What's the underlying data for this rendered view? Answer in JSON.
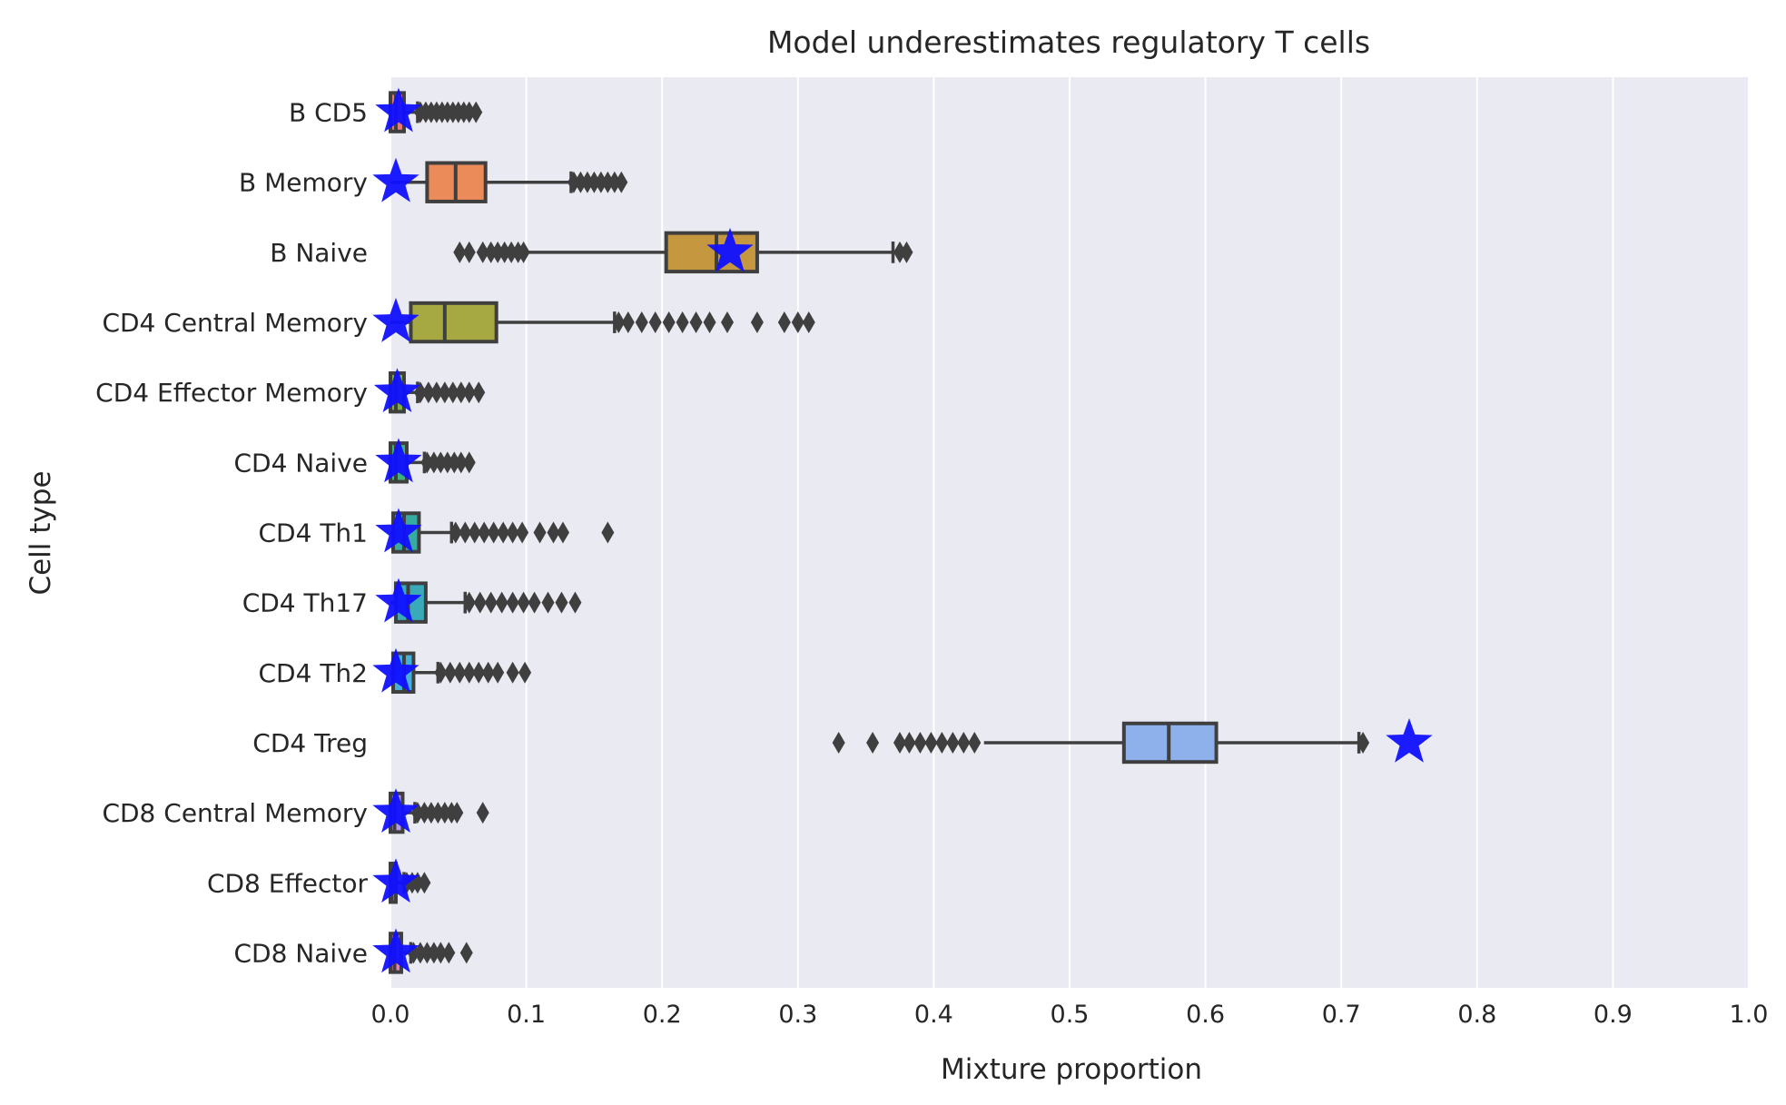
{
  "chart_data": {
    "type": "box",
    "title": "Model underestimates regulatory T cells",
    "xlabel": "Mixture proportion",
    "ylabel": "Cell type",
    "xlim": [
      0.0,
      1.0
    ],
    "xticks": [
      "0.0",
      "0.1",
      "0.2",
      "0.3",
      "0.4",
      "0.5",
      "0.6",
      "0.7",
      "0.8",
      "0.9",
      "1.0"
    ],
    "grid": true,
    "background": "#eaeaf2",
    "box_edge_color": "#3f3f3f",
    "marker_color": "#1010ff",
    "categories": [
      {
        "name": "B CD5",
        "color": "#e57a77",
        "q1": 0.0,
        "median": 0.004,
        "q3": 0.01,
        "whisker_low": 0.0,
        "whisker_high": 0.02,
        "outliers": [
          0.022,
          0.026,
          0.03,
          0.034,
          0.038,
          0.042,
          0.046,
          0.05,
          0.054,
          0.058,
          0.063
        ],
        "star": 0.006
      },
      {
        "name": "B Memory",
        "color": "#ec8b5a",
        "q1": 0.027,
        "median": 0.048,
        "q3": 0.07,
        "whisker_low": 0.0,
        "whisker_high": 0.133,
        "outliers": [
          0.135,
          0.14,
          0.145,
          0.15,
          0.155,
          0.16,
          0.165,
          0.17
        ],
        "star": 0.004
      },
      {
        "name": "B Naive",
        "color": "#c59840",
        "q1": 0.203,
        "median": 0.24,
        "q3": 0.27,
        "whisker_low": 0.1,
        "whisker_high": 0.37,
        "outliers": [
          0.051,
          0.058,
          0.068,
          0.074,
          0.079,
          0.084,
          0.089,
          0.094,
          0.098,
          0.375,
          0.38
        ],
        "star": 0.25
      },
      {
        "name": "CD4 Central Memory",
        "color": "#a6a841",
        "q1": 0.015,
        "median": 0.04,
        "q3": 0.078,
        "whisker_low": 0.0,
        "whisker_high": 0.165,
        "outliers": [
          0.168,
          0.175,
          0.185,
          0.195,
          0.205,
          0.215,
          0.225,
          0.235,
          0.248,
          0.27,
          0.29,
          0.3,
          0.308
        ],
        "star": 0.004
      },
      {
        "name": "CD4 Effector Memory",
        "color": "#7faf40",
        "q1": 0.0,
        "median": 0.004,
        "q3": 0.01,
        "whisker_low": 0.0,
        "whisker_high": 0.02,
        "outliers": [
          0.022,
          0.028,
          0.034,
          0.04,
          0.046,
          0.052,
          0.058,
          0.065
        ],
        "star": 0.005
      },
      {
        "name": "CD4 Naive",
        "color": "#3cb37a",
        "q1": 0.0,
        "median": 0.004,
        "q3": 0.012,
        "whisker_low": 0.0,
        "whisker_high": 0.025,
        "outliers": [
          0.027,
          0.032,
          0.037,
          0.042,
          0.047,
          0.052,
          0.058
        ],
        "star": 0.006
      },
      {
        "name": "CD4 Th1",
        "color": "#37ab9f",
        "q1": 0.002,
        "median": 0.01,
        "q3": 0.021,
        "whisker_low": 0.0,
        "whisker_high": 0.045,
        "outliers": [
          0.048,
          0.055,
          0.062,
          0.069,
          0.076,
          0.083,
          0.09,
          0.097,
          0.11,
          0.12,
          0.127,
          0.16
        ],
        "star": 0.006
      },
      {
        "name": "CD4 Th17",
        "color": "#3aaab8",
        "q1": 0.004,
        "median": 0.013,
        "q3": 0.026,
        "whisker_low": 0.0,
        "whisker_high": 0.055,
        "outliers": [
          0.058,
          0.066,
          0.074,
          0.082,
          0.09,
          0.098,
          0.106,
          0.116,
          0.126,
          0.136
        ],
        "star": 0.006
      },
      {
        "name": "CD4 Th2",
        "color": "#45b0d9",
        "q1": 0.002,
        "median": 0.01,
        "q3": 0.017,
        "whisker_low": 0.0,
        "whisker_high": 0.035,
        "outliers": [
          0.037,
          0.044,
          0.051,
          0.058,
          0.065,
          0.072,
          0.079,
          0.09,
          0.099
        ],
        "star": 0.004
      },
      {
        "name": "CD4 Treg",
        "color": "#8eb1ec",
        "q1": 0.54,
        "median": 0.573,
        "q3": 0.608,
        "whisker_low": 0.437,
        "whisker_high": 0.713,
        "outliers": [
          0.33,
          0.355,
          0.375,
          0.382,
          0.39,
          0.398,
          0.406,
          0.414,
          0.422,
          0.43,
          0.716
        ],
        "star": 0.75
      },
      {
        "name": "CD8 Central Memory",
        "color": "#b59ae9",
        "q1": 0.0,
        "median": 0.003,
        "q3": 0.009,
        "whisker_low": 0.0,
        "whisker_high": 0.018,
        "outliers": [
          0.02,
          0.025,
          0.03,
          0.035,
          0.04,
          0.045,
          0.049,
          0.068
        ],
        "star": 0.004
      },
      {
        "name": "CD8 Effector",
        "color": "#dd87d9",
        "q1": 0.0,
        "median": 0.001,
        "q3": 0.004,
        "whisker_low": 0.0,
        "whisker_high": 0.01,
        "outliers": [
          0.012,
          0.016,
          0.02,
          0.025
        ],
        "star": 0.004
      },
      {
        "name": "CD8 Naive",
        "color": "#e87eb5",
        "q1": 0.0,
        "median": 0.003,
        "q3": 0.008,
        "whisker_low": 0.0,
        "whisker_high": 0.015,
        "outliers": [
          0.017,
          0.022,
          0.027,
          0.032,
          0.037,
          0.043,
          0.056
        ],
        "star": 0.004
      }
    ]
  }
}
